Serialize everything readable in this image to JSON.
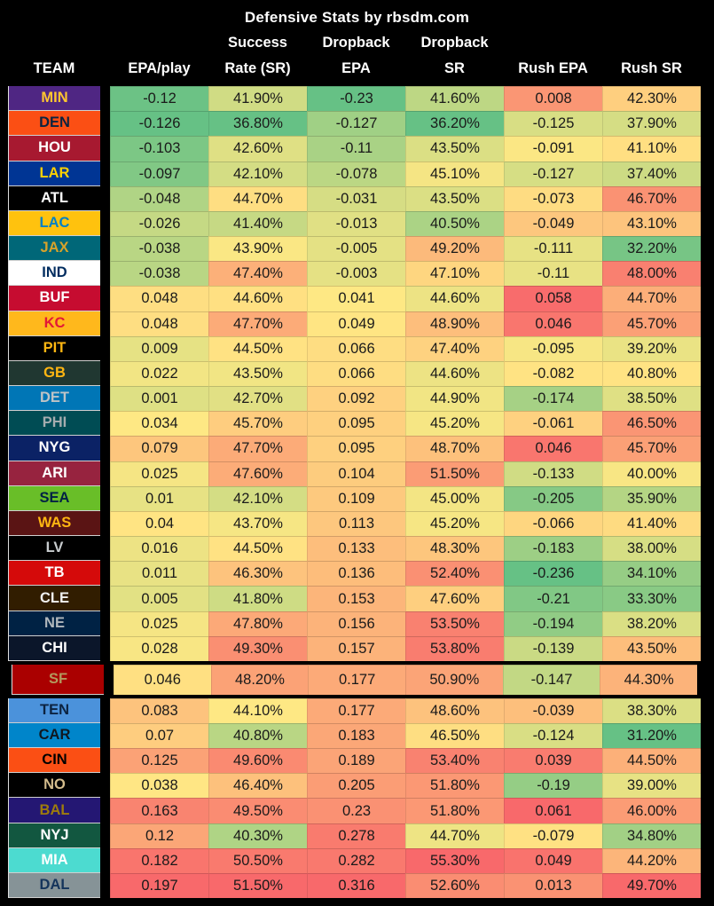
{
  "chart_data": {
    "type": "table",
    "title": "Defensive Stats by rbsdm.com",
    "columns": [
      {
        "key": "team",
        "line1": "",
        "line2": "TEAM"
      },
      {
        "key": "epa_play",
        "line1": "",
        "line2": "EPA/play"
      },
      {
        "key": "success_rate",
        "line1": "Success",
        "line2": "Rate (SR)"
      },
      {
        "key": "dropback_epa",
        "line1": "Dropback",
        "line2": "EPA"
      },
      {
        "key": "dropback_sr",
        "line1": "Dropback",
        "line2": "SR"
      },
      {
        "key": "rush_epa",
        "line1": "",
        "line2": "Rush EPA"
      },
      {
        "key": "rush_sr",
        "line1": "",
        "line2": "Rush SR"
      }
    ],
    "color_scale": {
      "low": "#66C185",
      "mid": "#FFE884",
      "high": "#F8696B",
      "mapping": "per-column linear min(green) to max(red)"
    },
    "highlighted_team": "SF",
    "rows": [
      {
        "team": "MIN",
        "bg": "#4F2683",
        "fg": "#FFC62F",
        "highlighted": false,
        "values": [
          "-0.12",
          "41.90%",
          "-0.23",
          "41.60%",
          "0.008",
          "42.30%"
        ]
      },
      {
        "team": "DEN",
        "bg": "#FB4F14",
        "fg": "#0C2340",
        "highlighted": false,
        "values": [
          "-0.126",
          "36.80%",
          "-0.127",
          "36.20%",
          "-0.125",
          "37.90%"
        ]
      },
      {
        "team": "HOU",
        "bg": "#A71930",
        "fg": "#FFFFFF",
        "highlighted": false,
        "values": [
          "-0.103",
          "42.60%",
          "-0.11",
          "43.50%",
          "-0.091",
          "41.10%"
        ]
      },
      {
        "team": "LAR",
        "bg": "#003594",
        "fg": "#FFD100",
        "highlighted": false,
        "values": [
          "-0.097",
          "42.10%",
          "-0.078",
          "45.10%",
          "-0.127",
          "37.40%"
        ]
      },
      {
        "team": "ATL",
        "bg": "#000000",
        "fg": "#FFFFFF",
        "highlighted": false,
        "values": [
          "-0.048",
          "44.70%",
          "-0.031",
          "43.50%",
          "-0.073",
          "46.70%"
        ]
      },
      {
        "team": "LAC",
        "bg": "#FFC20E",
        "fg": "#0080C6",
        "highlighted": false,
        "values": [
          "-0.026",
          "41.40%",
          "-0.013",
          "40.50%",
          "-0.049",
          "43.10%"
        ]
      },
      {
        "team": "JAX",
        "bg": "#006778",
        "fg": "#D7A22A",
        "highlighted": false,
        "values": [
          "-0.038",
          "43.90%",
          "-0.005",
          "49.20%",
          "-0.111",
          "32.20%"
        ]
      },
      {
        "team": "IND",
        "bg": "#FFFFFF",
        "fg": "#002C5F",
        "highlighted": false,
        "values": [
          "-0.038",
          "47.40%",
          "-0.003",
          "47.10%",
          "-0.11",
          "48.00%"
        ]
      },
      {
        "team": "BUF",
        "bg": "#C60C30",
        "fg": "#FFFFFF",
        "highlighted": false,
        "values": [
          "0.048",
          "44.60%",
          "0.041",
          "44.60%",
          "0.058",
          "44.70%"
        ]
      },
      {
        "team": "KC",
        "bg": "#FFB81C",
        "fg": "#E31837",
        "highlighted": false,
        "values": [
          "0.048",
          "47.70%",
          "0.049",
          "48.90%",
          "0.046",
          "45.70%"
        ]
      },
      {
        "team": "PIT",
        "bg": "#000000",
        "fg": "#FFB612",
        "highlighted": false,
        "values": [
          "0.009",
          "44.50%",
          "0.066",
          "47.40%",
          "-0.095",
          "39.20%"
        ]
      },
      {
        "team": "GB",
        "bg": "#203731",
        "fg": "#FFB612",
        "highlighted": false,
        "values": [
          "0.022",
          "43.50%",
          "0.066",
          "44.60%",
          "-0.082",
          "40.80%"
        ]
      },
      {
        "team": "DET",
        "bg": "#0076B6",
        "fg": "#BEC3C6",
        "highlighted": false,
        "values": [
          "0.001",
          "42.70%",
          "0.092",
          "44.90%",
          "-0.174",
          "38.50%"
        ]
      },
      {
        "team": "PHI",
        "bg": "#004C54",
        "fg": "#A5ACAF",
        "highlighted": false,
        "values": [
          "0.034",
          "45.70%",
          "0.095",
          "45.20%",
          "-0.061",
          "46.50%"
        ]
      },
      {
        "team": "NYG",
        "bg": "#0B2265",
        "fg": "#FFFFFF",
        "highlighted": false,
        "values": [
          "0.079",
          "47.70%",
          "0.095",
          "48.70%",
          "0.046",
          "45.70%"
        ]
      },
      {
        "team": "ARI",
        "bg": "#97233F",
        "fg": "#FFFFFF",
        "highlighted": false,
        "values": [
          "0.025",
          "47.60%",
          "0.104",
          "51.50%",
          "-0.133",
          "40.00%"
        ]
      },
      {
        "team": "SEA",
        "bg": "#69BE28",
        "fg": "#002244",
        "highlighted": false,
        "values": [
          "0.01",
          "42.10%",
          "0.109",
          "45.00%",
          "-0.205",
          "35.90%"
        ]
      },
      {
        "team": "WAS",
        "bg": "#5A1414",
        "fg": "#FFB612",
        "highlighted": false,
        "values": [
          "0.04",
          "43.70%",
          "0.113",
          "45.20%",
          "-0.066",
          "41.40%"
        ]
      },
      {
        "team": "LV",
        "bg": "#000000",
        "fg": "#C8CCCE",
        "highlighted": false,
        "values": [
          "0.016",
          "44.50%",
          "0.133",
          "48.30%",
          "-0.183",
          "38.00%"
        ]
      },
      {
        "team": "TB",
        "bg": "#D50A0A",
        "fg": "#FFFFFF",
        "highlighted": false,
        "values": [
          "0.011",
          "46.30%",
          "0.136",
          "52.40%",
          "-0.236",
          "34.10%"
        ]
      },
      {
        "team": "CLE",
        "bg": "#311D00",
        "fg": "#F0F0F0",
        "highlighted": false,
        "values": [
          "0.005",
          "41.80%",
          "0.153",
          "47.60%",
          "-0.21",
          "33.30%"
        ]
      },
      {
        "team": "NE",
        "bg": "#002244",
        "fg": "#B0B7BC",
        "highlighted": false,
        "values": [
          "0.025",
          "47.80%",
          "0.156",
          "53.50%",
          "-0.194",
          "38.20%"
        ]
      },
      {
        "team": "CHI",
        "bg": "#0B162A",
        "fg": "#FFFFFF",
        "highlighted": false,
        "values": [
          "0.028",
          "49.30%",
          "0.157",
          "53.80%",
          "-0.139",
          "43.50%"
        ]
      },
      {
        "team": "SF",
        "bg": "#AA0000",
        "fg": "#B3995D",
        "highlighted": true,
        "values": [
          "0.046",
          "48.20%",
          "0.177",
          "50.90%",
          "-0.147",
          "44.30%"
        ]
      },
      {
        "team": "TEN",
        "bg": "#4B92DB",
        "fg": "#0C2340",
        "highlighted": false,
        "values": [
          "0.083",
          "44.10%",
          "0.177",
          "48.60%",
          "-0.039",
          "38.30%"
        ]
      },
      {
        "team": "CAR",
        "bg": "#0085CA",
        "fg": "#101820",
        "highlighted": false,
        "values": [
          "0.07",
          "40.80%",
          "0.183",
          "46.50%",
          "-0.124",
          "31.20%"
        ]
      },
      {
        "team": "CIN",
        "bg": "#FB4F14",
        "fg": "#000000",
        "highlighted": false,
        "values": [
          "0.125",
          "49.60%",
          "0.189",
          "53.40%",
          "0.039",
          "44.50%"
        ]
      },
      {
        "team": "NO",
        "bg": "#000000",
        "fg": "#D3BC8D",
        "highlighted": false,
        "values": [
          "0.038",
          "46.40%",
          "0.205",
          "51.80%",
          "-0.19",
          "39.00%"
        ]
      },
      {
        "team": "BAL",
        "bg": "#241773",
        "fg": "#9E7C0C",
        "highlighted": false,
        "values": [
          "0.163",
          "49.50%",
          "0.23",
          "51.80%",
          "0.061",
          "46.00%"
        ]
      },
      {
        "team": "NYJ",
        "bg": "#125740",
        "fg": "#FFFFFF",
        "highlighted": false,
        "values": [
          "0.12",
          "40.30%",
          "0.278",
          "44.70%",
          "-0.079",
          "34.80%"
        ]
      },
      {
        "team": "MIA",
        "bg": "#4CDBD0",
        "fg": "#FFFFFF",
        "highlighted": false,
        "values": [
          "0.182",
          "50.50%",
          "0.282",
          "55.30%",
          "0.049",
          "44.20%"
        ]
      },
      {
        "team": "DAL",
        "bg": "#869397",
        "fg": "#14345B",
        "highlighted": false,
        "values": [
          "0.197",
          "51.50%",
          "0.316",
          "52.60%",
          "0.013",
          "49.70%"
        ]
      }
    ]
  }
}
